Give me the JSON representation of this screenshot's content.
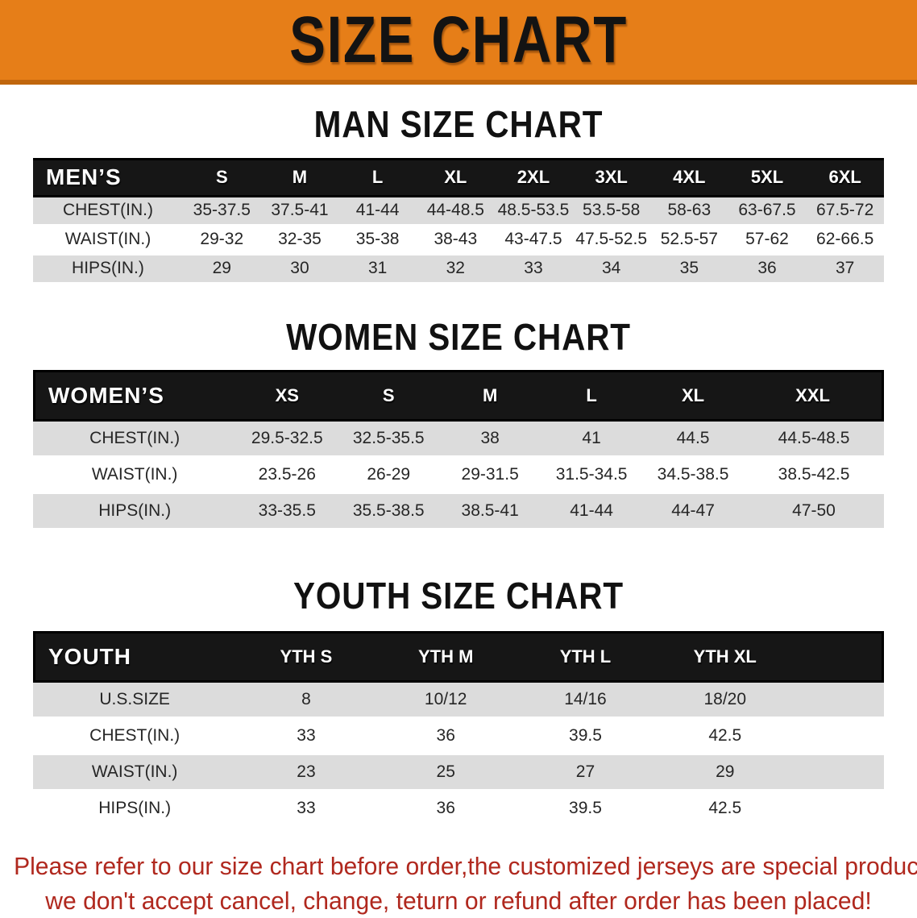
{
  "banner": {
    "title": "SIZE CHART",
    "bg_color": "#E67E18",
    "text_color": "#131313"
  },
  "sections": [
    {
      "heading": "MAN SIZE CHART",
      "table": {
        "corner_label": "MEN’S",
        "columns": [
          "S",
          "M",
          "L",
          "XL",
          "2XL",
          "3XL",
          "4XL",
          "5XL",
          "6XL"
        ],
        "rows": [
          {
            "label": "CHEST(IN.)",
            "values": [
              "35-37.5",
              "37.5-41",
              "41-44",
              "44-48.5",
              "48.5-53.5",
              "53.5-58",
              "58-63",
              "63-67.5",
              "67.5-72"
            ]
          },
          {
            "label": "WAIST(IN.)",
            "values": [
              "29-32",
              "32-35",
              "35-38",
              "38-43",
              "43-47.5",
              "47.5-52.5",
              "52.5-57",
              "57-62",
              "62-66.5"
            ]
          },
          {
            "label": "HIPS(IN.)",
            "values": [
              "29",
              "30",
              "31",
              "32",
              "33",
              "34",
              "35",
              "36",
              "37"
            ]
          }
        ]
      }
    },
    {
      "heading": "WOMEN SIZE CHART",
      "table": {
        "corner_label": "WOMEN’S",
        "columns": [
          "XS",
          "S",
          "M",
          "L",
          "XL",
          "XXL"
        ],
        "rows": [
          {
            "label": "CHEST(IN.)",
            "values": [
              "29.5-32.5",
              "32.5-35.5",
              "38",
              "41",
              "44.5",
              "44.5-48.5"
            ]
          },
          {
            "label": "WAIST(IN.)",
            "values": [
              "23.5-26",
              "26-29",
              "29-31.5",
              "31.5-34.5",
              "34.5-38.5",
              "38.5-42.5"
            ]
          },
          {
            "label": "HIPS(IN.)",
            "values": [
              "33-35.5",
              "35.5-38.5",
              "38.5-41",
              "41-44",
              "44-47",
              "47-50"
            ]
          }
        ]
      }
    },
    {
      "heading": "YOUTH SIZE CHART",
      "table": {
        "corner_label": "YOUTH",
        "columns": [
          "YTH S",
          "YTH M",
          "YTH L",
          "YTH XL"
        ],
        "rows": [
          {
            "label": "U.S.SIZE",
            "values": [
              "8",
              "10/12",
              "14/16",
              "18/20"
            ]
          },
          {
            "label": "CHEST(IN.)",
            "values": [
              "33",
              "36",
              "39.5",
              "42.5"
            ]
          },
          {
            "label": "WAIST(IN.)",
            "values": [
              "23",
              "25",
              "27",
              "29"
            ]
          },
          {
            "label": "HIPS(IN.)",
            "values": [
              "33",
              "36",
              "39.5",
              "42.5"
            ]
          }
        ]
      }
    }
  ],
  "disclaimer": {
    "line1": "Please refer to our size chart before order,the customized jerseys are special products,",
    "line2": "we don't accept cancel, change, teturn or refund after order has been placed!",
    "text_color": "#B0281E"
  },
  "colors": {
    "banner_orange": "#E67E18",
    "banner_orange_edge": "#C0660D",
    "header_band_black": "#161616",
    "row_stripe_gray": "#DCDCDC",
    "disclaimer_red": "#B0281E"
  }
}
